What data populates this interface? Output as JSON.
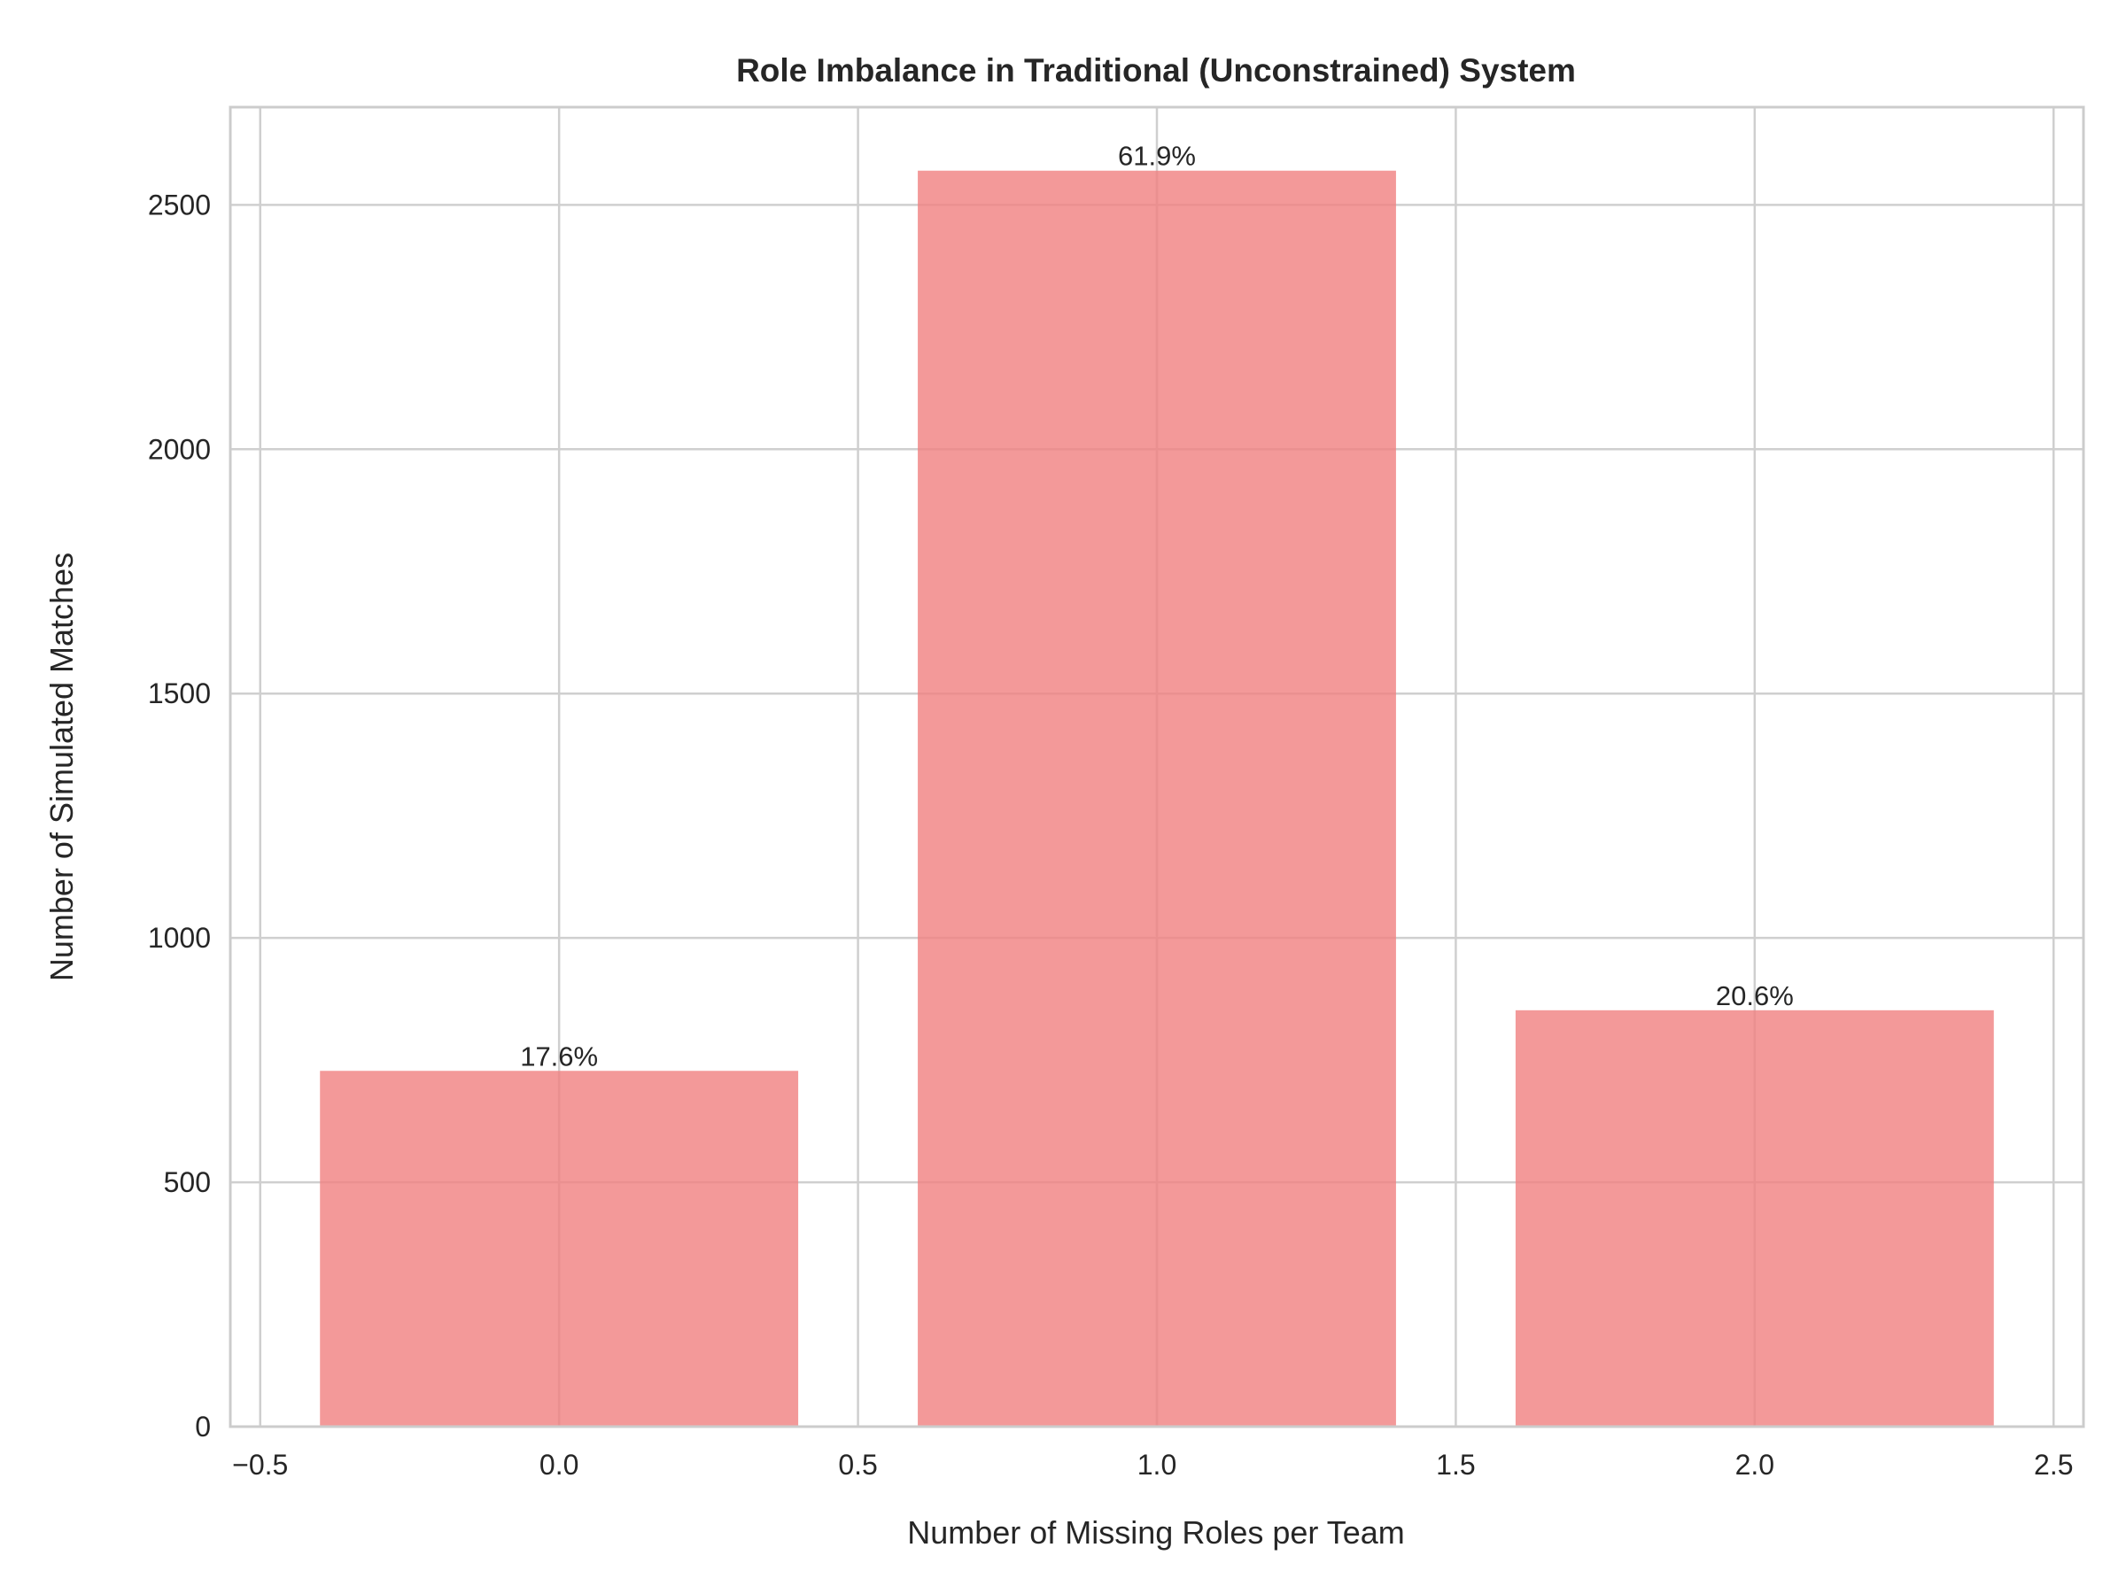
{
  "chart_data": {
    "type": "bar",
    "title": "Role Imbalance in Traditional (Unconstrained) System",
    "xlabel": "Number of Missing Roles per Team",
    "ylabel": "Number of Simulated Matches",
    "x": [
      0,
      1,
      2
    ],
    "values": [
      728,
      2570,
      852
    ],
    "bar_labels": [
      "17.6%",
      "61.9%",
      "20.6%"
    ],
    "bar_width": 0.8,
    "xlim": [
      -0.55,
      2.55
    ],
    "ylim": [
      0,
      2700
    ],
    "xticks": [
      -0.5,
      0.0,
      0.5,
      1.0,
      1.5,
      2.0,
      2.5
    ],
    "xtick_labels": [
      "−0.5",
      "0.0",
      "0.5",
      "1.0",
      "1.5",
      "2.0",
      "2.5"
    ],
    "yticks": [
      0,
      500,
      1000,
      1500,
      2000,
      2500
    ],
    "ytick_labels": [
      "0",
      "500",
      "1000",
      "1500",
      "2000",
      "2500"
    ],
    "bar_color": "#f08080",
    "bar_alpha": 0.8,
    "grid": true
  }
}
